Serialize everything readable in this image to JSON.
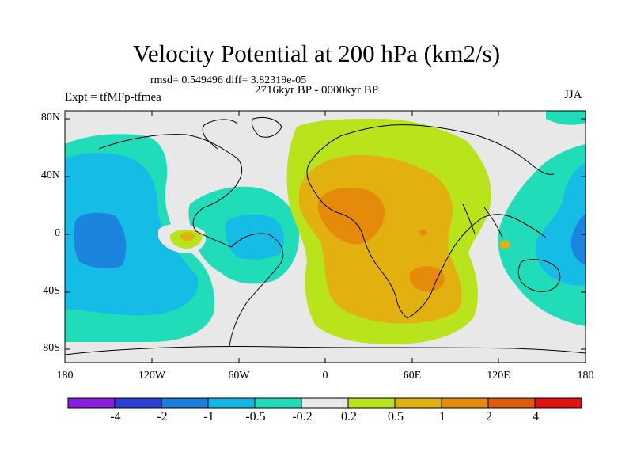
{
  "title": "Velocity Potential at 200 hPa (km2/s)",
  "stats": "rmsd= 0.549496 diff= 3.82319e-05",
  "period": "2716kyr BP - 0000kyr BP",
  "experiment": "Expt = tfMFp-tfmea",
  "season": "JJA",
  "lat_labels": [
    "80N",
    "40N",
    "0",
    "40S",
    "80S"
  ],
  "lon_labels": [
    "180",
    "120W",
    "60W",
    "0",
    "60E",
    "120E",
    "180"
  ],
  "colorbar": {
    "labels": [
      "-4",
      "-2",
      "-1",
      "-0.5",
      "-0.2",
      "0.2",
      "0.5",
      "1",
      "2",
      "4"
    ],
    "colors": [
      "#8a1ee0",
      "#2b3fd6",
      "#1a7fdc",
      "#12b6e6",
      "#1fdcb9",
      "#e8e8e8",
      "#b8e41c",
      "#e1b10f",
      "#e48b0a",
      "#df5a0a",
      "#e11212"
    ]
  },
  "field_colors": {
    "background": "#e8e8e8",
    "neg_02": "#20dcb9",
    "neg_05": "#15bde6",
    "neg_1": "#1b84dc",
    "pos_02": "#b9e41c",
    "pos_05": "#e2b10f",
    "pos_1": "#e58a0a"
  }
}
